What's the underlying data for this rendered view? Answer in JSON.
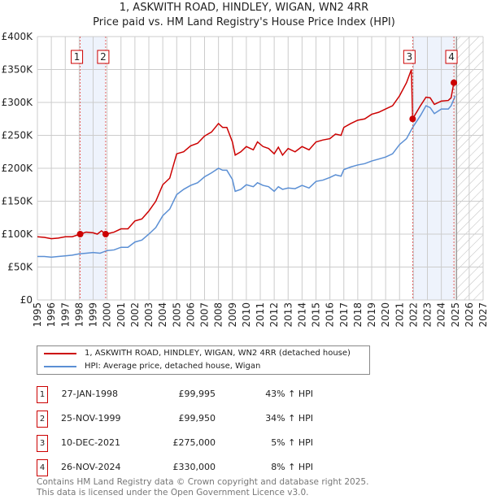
{
  "chart_data": {
    "type": "line",
    "title": "1, ASKWITH ROAD, HINDLEY, WIGAN, WN2 4RR",
    "subtitle": "Price paid vs. HM Land Registry's House Price Index (HPI)",
    "xlim": [
      1995,
      2027
    ],
    "ylim": [
      0,
      400000
    ],
    "x_ticks": [
      "1995",
      "1996",
      "1997",
      "1998",
      "1999",
      "2000",
      "2001",
      "2002",
      "2003",
      "2004",
      "2005",
      "2006",
      "2007",
      "2008",
      "2009",
      "2010",
      "2011",
      "2012",
      "2013",
      "2014",
      "2015",
      "2016",
      "2017",
      "2018",
      "2019",
      "2020",
      "2021",
      "2022",
      "2023",
      "2024",
      "2025",
      "2026",
      "2027"
    ],
    "y_ticks": [
      {
        "v": 0,
        "label": "£0"
      },
      {
        "v": 50000,
        "label": "£50K"
      },
      {
        "v": 100000,
        "label": "£100K"
      },
      {
        "v": 150000,
        "label": "£150K"
      },
      {
        "v": 200000,
        "label": "£200K"
      },
      {
        "v": 250000,
        "label": "£250K"
      },
      {
        "v": 300000,
        "label": "£300K"
      },
      {
        "v": 350000,
        "label": "£350K"
      },
      {
        "v": 400000,
        "label": "£400K"
      }
    ],
    "grid": true,
    "series": [
      {
        "name": "1, ASKWITH ROAD, HINDLEY, WIGAN, WN2 4RR (detached house)",
        "color": "#cc0000",
        "points": [
          [
            1995,
            96
          ],
          [
            1995.5,
            95
          ],
          [
            1996,
            93
          ],
          [
            1996.5,
            94
          ],
          [
            1997,
            96
          ],
          [
            1997.5,
            96
          ],
          [
            1998.07,
            100
          ],
          [
            1998.5,
            103
          ],
          [
            1999,
            102
          ],
          [
            1999.3,
            100
          ],
          [
            1999.6,
            105
          ],
          [
            1999.9,
            100
          ],
          [
            2000.5,
            103
          ],
          [
            2001,
            108
          ],
          [
            2001.5,
            108
          ],
          [
            2002,
            120
          ],
          [
            2002.5,
            123
          ],
          [
            2003,
            135
          ],
          [
            2003.5,
            150
          ],
          [
            2004,
            175
          ],
          [
            2004.5,
            185
          ],
          [
            2005,
            222
          ],
          [
            2005.5,
            225
          ],
          [
            2006,
            234
          ],
          [
            2006.5,
            238
          ],
          [
            2007,
            249
          ],
          [
            2007.5,
            255
          ],
          [
            2008,
            268
          ],
          [
            2008.3,
            262
          ],
          [
            2008.6,
            262
          ],
          [
            2009,
            240
          ],
          [
            2009.2,
            220
          ],
          [
            2009.6,
            225
          ],
          [
            2010,
            233
          ],
          [
            2010.5,
            228
          ],
          [
            2010.8,
            240
          ],
          [
            2011.2,
            233
          ],
          [
            2011.6,
            230
          ],
          [
            2012,
            222
          ],
          [
            2012.3,
            232
          ],
          [
            2012.6,
            220
          ],
          [
            2013,
            230
          ],
          [
            2013.5,
            225
          ],
          [
            2014,
            233
          ],
          [
            2014.5,
            228
          ],
          [
            2015,
            240
          ],
          [
            2015.5,
            243
          ],
          [
            2016,
            245
          ],
          [
            2016.4,
            252
          ],
          [
            2016.8,
            250
          ],
          [
            2017,
            262
          ],
          [
            2017.5,
            268
          ],
          [
            2018,
            273
          ],
          [
            2018.5,
            275
          ],
          [
            2019,
            282
          ],
          [
            2019.5,
            285
          ],
          [
            2020,
            290
          ],
          [
            2020.5,
            295
          ],
          [
            2021,
            310
          ],
          [
            2021.5,
            330
          ],
          [
            2021.85,
            350
          ],
          [
            2021.94,
            275
          ],
          [
            2022.5,
            295
          ],
          [
            2022.9,
            308
          ],
          [
            2023.2,
            307
          ],
          [
            2023.5,
            297
          ],
          [
            2024,
            302
          ],
          [
            2024.5,
            303
          ],
          [
            2024.7,
            307
          ],
          [
            2024.9,
            330
          ],
          [
            2025,
            332
          ]
        ]
      },
      {
        "name": "HPI: Average price, detached house, Wigan",
        "color": "#5b8fd4",
        "points": [
          [
            1995,
            66
          ],
          [
            1995.5,
            66
          ],
          [
            1996,
            65
          ],
          [
            1996.5,
            66
          ],
          [
            1997,
            67
          ],
          [
            1997.5,
            68
          ],
          [
            1998,
            70
          ],
          [
            1998.5,
            71
          ],
          [
            1999,
            72
          ],
          [
            1999.5,
            71
          ],
          [
            2000,
            75
          ],
          [
            2000.5,
            76
          ],
          [
            2001,
            80
          ],
          [
            2001.5,
            80
          ],
          [
            2002,
            88
          ],
          [
            2002.5,
            91
          ],
          [
            2003,
            100
          ],
          [
            2003.5,
            110
          ],
          [
            2004,
            128
          ],
          [
            2004.5,
            138
          ],
          [
            2005,
            160
          ],
          [
            2005.5,
            168
          ],
          [
            2006,
            174
          ],
          [
            2006.5,
            178
          ],
          [
            2007,
            187
          ],
          [
            2007.5,
            193
          ],
          [
            2008,
            200
          ],
          [
            2008.3,
            197
          ],
          [
            2008.6,
            197
          ],
          [
            2009,
            183
          ],
          [
            2009.2,
            165
          ],
          [
            2009.6,
            168
          ],
          [
            2010,
            175
          ],
          [
            2010.5,
            172
          ],
          [
            2010.8,
            178
          ],
          [
            2011.2,
            174
          ],
          [
            2011.6,
            172
          ],
          [
            2012,
            165
          ],
          [
            2012.3,
            172
          ],
          [
            2012.6,
            168
          ],
          [
            2013,
            170
          ],
          [
            2013.5,
            169
          ],
          [
            2014,
            174
          ],
          [
            2014.5,
            170
          ],
          [
            2015,
            180
          ],
          [
            2015.5,
            182
          ],
          [
            2016,
            186
          ],
          [
            2016.4,
            190
          ],
          [
            2016.8,
            188
          ],
          [
            2017,
            198
          ],
          [
            2017.5,
            202
          ],
          [
            2018,
            205
          ],
          [
            2018.5,
            207
          ],
          [
            2019,
            211
          ],
          [
            2019.5,
            214
          ],
          [
            2020,
            217
          ],
          [
            2020.5,
            222
          ],
          [
            2021,
            236
          ],
          [
            2021.5,
            245
          ],
          [
            2021.94,
            262
          ],
          [
            2022.5,
            280
          ],
          [
            2022.9,
            295
          ],
          [
            2023.2,
            292
          ],
          [
            2023.5,
            283
          ],
          [
            2024,
            290
          ],
          [
            2024.5,
            290
          ],
          [
            2024.7,
            295
          ],
          [
            2025,
            310
          ]
        ]
      }
    ],
    "units_note": "values in £K",
    "sales": [
      {
        "n": "1",
        "x": 1998.07,
        "y": 99.995
      },
      {
        "n": "2",
        "x": 1999.9,
        "y": 99.95
      },
      {
        "n": "3",
        "x": 2021.94,
        "y": 275
      },
      {
        "n": "4",
        "x": 2024.9,
        "y": 330
      }
    ],
    "shaded_ranges": [
      [
        1998.07,
        1999.9
      ],
      [
        2021.94,
        2024.9
      ]
    ],
    "forecast_hatch_from": 2025.1,
    "legend_placement": "below"
  },
  "legend": [
    "1, ASKWITH ROAD, HINDLEY, WIGAN, WN2 4RR (detached house)",
    "HPI: Average price, detached house, Wigan"
  ],
  "table": [
    {
      "n": "1",
      "date": "27-JAN-1998",
      "price": "£99,995",
      "hpi": "43% ↑ HPI"
    },
    {
      "n": "2",
      "date": "25-NOV-1999",
      "price": "£99,950",
      "hpi": "34% ↑ HPI"
    },
    {
      "n": "3",
      "date": "10-DEC-2021",
      "price": "£275,000",
      "hpi": "5% ↑ HPI"
    },
    {
      "n": "4",
      "date": "26-NOV-2024",
      "price": "£330,000",
      "hpi": "8% ↑ HPI"
    }
  ],
  "footer": [
    "Contains HM Land Registry data © Crown copyright and database right 2025.",
    "This data is licensed under the Open Government Licence v3.0."
  ]
}
